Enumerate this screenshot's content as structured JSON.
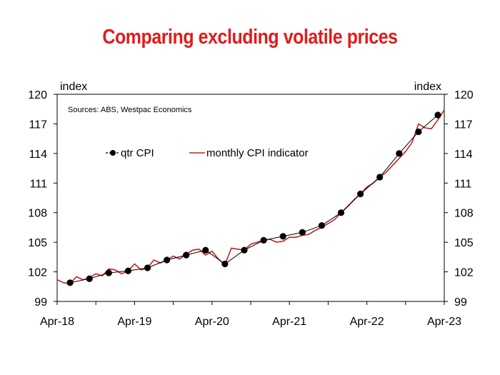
{
  "chart_data": {
    "type": "line",
    "title": "Comparing excluding volatile prices",
    "source": "Sources: ABS, Westpac Economics",
    "ylabel_left": "index",
    "ylabel_right": "index",
    "ylim": [
      99,
      120
    ],
    "yticks": [
      "99",
      "102",
      "105",
      "108",
      "111",
      "114",
      "117",
      "120"
    ],
    "xticks": [
      "Apr-18",
      "Apr-19",
      "Apr-20",
      "Apr-21",
      "Apr-22",
      "Apr-23"
    ],
    "x_start": "2018-04",
    "x_end": "2023-04",
    "legend": [
      "qtr CPI",
      "monthly CPI indicator"
    ],
    "colors": {
      "qtr": "#000000",
      "monthly": "#c62020",
      "title": "#e21b1b"
    },
    "series": [
      {
        "name": "qtr CPI",
        "dates": [
          "2018-06",
          "2018-09",
          "2018-12",
          "2019-03",
          "2019-06",
          "2019-09",
          "2019-12",
          "2020-03",
          "2020-06",
          "2020-09",
          "2020-12",
          "2021-03",
          "2021-06",
          "2021-09",
          "2021-12",
          "2022-03",
          "2022-06",
          "2022-09",
          "2022-12",
          "2023-03"
        ],
        "values": [
          100.9,
          101.3,
          101.9,
          102.1,
          102.4,
          103.2,
          103.7,
          104.2,
          102.8,
          104.2,
          105.2,
          105.6,
          106.0,
          106.7,
          108.0,
          109.9,
          111.6,
          114.0,
          116.2,
          117.9
        ]
      },
      {
        "name": "monthly CPI indicator",
        "dates": [
          "2018-04",
          "2018-05",
          "2018-06",
          "2018-07",
          "2018-08",
          "2018-09",
          "2018-10",
          "2018-11",
          "2018-12",
          "2019-01",
          "2019-02",
          "2019-03",
          "2019-04",
          "2019-05",
          "2019-06",
          "2019-07",
          "2019-08",
          "2019-09",
          "2019-10",
          "2019-11",
          "2019-12",
          "2020-01",
          "2020-02",
          "2020-03",
          "2020-04",
          "2020-05",
          "2020-06",
          "2020-07",
          "2020-08",
          "2020-09",
          "2020-10",
          "2020-11",
          "2020-12",
          "2021-01",
          "2021-02",
          "2021-03",
          "2021-04",
          "2021-05",
          "2021-06",
          "2021-07",
          "2021-08",
          "2021-09",
          "2021-10",
          "2021-11",
          "2021-12",
          "2022-01",
          "2022-02",
          "2022-03",
          "2022-04",
          "2022-05",
          "2022-06",
          "2022-07",
          "2022-08",
          "2022-09",
          "2022-10",
          "2022-11",
          "2022-12",
          "2023-01",
          "2023-02",
          "2023-03",
          "2023-04"
        ],
        "values": [
          101.2,
          100.9,
          100.8,
          101.5,
          101.2,
          101.4,
          101.8,
          101.6,
          102.3,
          102.2,
          101.8,
          102.1,
          102.8,
          102.2,
          102.4,
          103.2,
          102.9,
          103.2,
          103.6,
          103.3,
          103.8,
          104.2,
          104.3,
          103.7,
          104.1,
          103.3,
          102.7,
          104.4,
          104.3,
          104.2,
          104.8,
          105.0,
          105.2,
          105.3,
          105.0,
          105.1,
          105.5,
          105.5,
          105.7,
          105.8,
          106.2,
          106.5,
          106.9,
          107.3,
          108.0,
          108.6,
          109.3,
          109.9,
          110.6,
          111.0,
          111.6,
          112.1,
          112.8,
          113.5,
          114.2,
          115.1,
          117.0,
          116.6,
          116.5,
          117.4,
          118.4
        ]
      }
    ]
  }
}
